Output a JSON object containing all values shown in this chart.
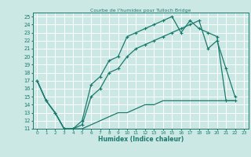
{
  "title": "Courbe de l'humidex pour Tulloch Bridge",
  "xlabel": "Humidex (Indice chaleur)",
  "bg_color": "#cce8e4",
  "grid_color": "#ffffff",
  "line_color": "#1a7a6e",
  "xlim": [
    -0.5,
    23.5
  ],
  "ylim": [
    11,
    25.5
  ],
  "xticks": [
    0,
    1,
    2,
    3,
    4,
    5,
    6,
    7,
    8,
    9,
    10,
    11,
    12,
    13,
    14,
    15,
    16,
    17,
    18,
    19,
    20,
    21,
    22,
    23
  ],
  "yticks": [
    11,
    12,
    13,
    14,
    15,
    16,
    17,
    18,
    19,
    20,
    21,
    22,
    23,
    24,
    25
  ],
  "line1_x": [
    0,
    1,
    2,
    3,
    4,
    5,
    6,
    7,
    8,
    9,
    10,
    11,
    12,
    13,
    14,
    15,
    16,
    17,
    18,
    19,
    20,
    21,
    22
  ],
  "line1_y": [
    17,
    14.5,
    13,
    11,
    11,
    12,
    16.5,
    17.5,
    19.5,
    20,
    22.5,
    23,
    23.5,
    24,
    24.5,
    25,
    23,
    24.5,
    23.5,
    23,
    22.5,
    14.5,
    14.5
  ],
  "line2_x": [
    0,
    1,
    2,
    3,
    4,
    5,
    6,
    7,
    8,
    9,
    10,
    11,
    12,
    13,
    14,
    15,
    16,
    17,
    18,
    19,
    20,
    21,
    22
  ],
  "line2_y": [
    17,
    14.5,
    13,
    11,
    11,
    11.5,
    15,
    16,
    18,
    18.5,
    20,
    21,
    21.5,
    22,
    22.5,
    23,
    23.5,
    24,
    24.5,
    21,
    22,
    18.5,
    15
  ],
  "line3_x": [
    0,
    1,
    2,
    3,
    4,
    5,
    6,
    7,
    8,
    9,
    10,
    11,
    12,
    13,
    14,
    15,
    16,
    17,
    18,
    19,
    20,
    21,
    22
  ],
  "line3_y": [
    17,
    14.5,
    13,
    11,
    11,
    11,
    11.5,
    12,
    12.5,
    13,
    13,
    13.5,
    14,
    14,
    14.5,
    14.5,
    14.5,
    14.5,
    14.5,
    14.5,
    14.5,
    14.5,
    14.5
  ]
}
